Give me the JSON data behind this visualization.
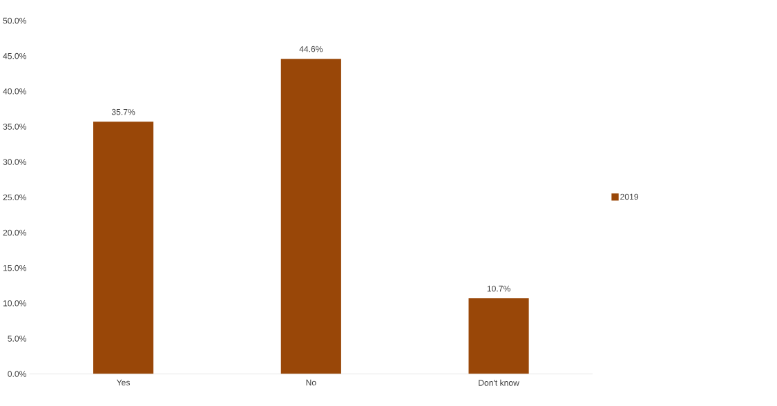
{
  "chart_data": {
    "type": "bar",
    "categories": [
      "Yes",
      "No",
      "Don't know"
    ],
    "series": [
      {
        "name": "2019",
        "color": "#994708",
        "values": [
          35.7,
          44.6,
          10.7
        ],
        "value_labels": [
          "35.7%",
          "44.6%",
          "10.7%"
        ]
      }
    ],
    "ylim": [
      0,
      50
    ],
    "yticks": [
      {
        "value": 0,
        "label": "0.0%"
      },
      {
        "value": 5,
        "label": "5.0%"
      },
      {
        "value": 10,
        "label": "10.0%"
      },
      {
        "value": 15,
        "label": "15.0%"
      },
      {
        "value": 20,
        "label": "20.0%"
      },
      {
        "value": 25,
        "label": "25.0%"
      },
      {
        "value": 30,
        "label": "30.0%"
      },
      {
        "value": 35,
        "label": "35.0%"
      },
      {
        "value": 40,
        "label": "40.0%"
      },
      {
        "value": 45,
        "label": "45.0%"
      },
      {
        "value": 50,
        "label": "50.0%"
      }
    ],
    "legend": "right"
  }
}
